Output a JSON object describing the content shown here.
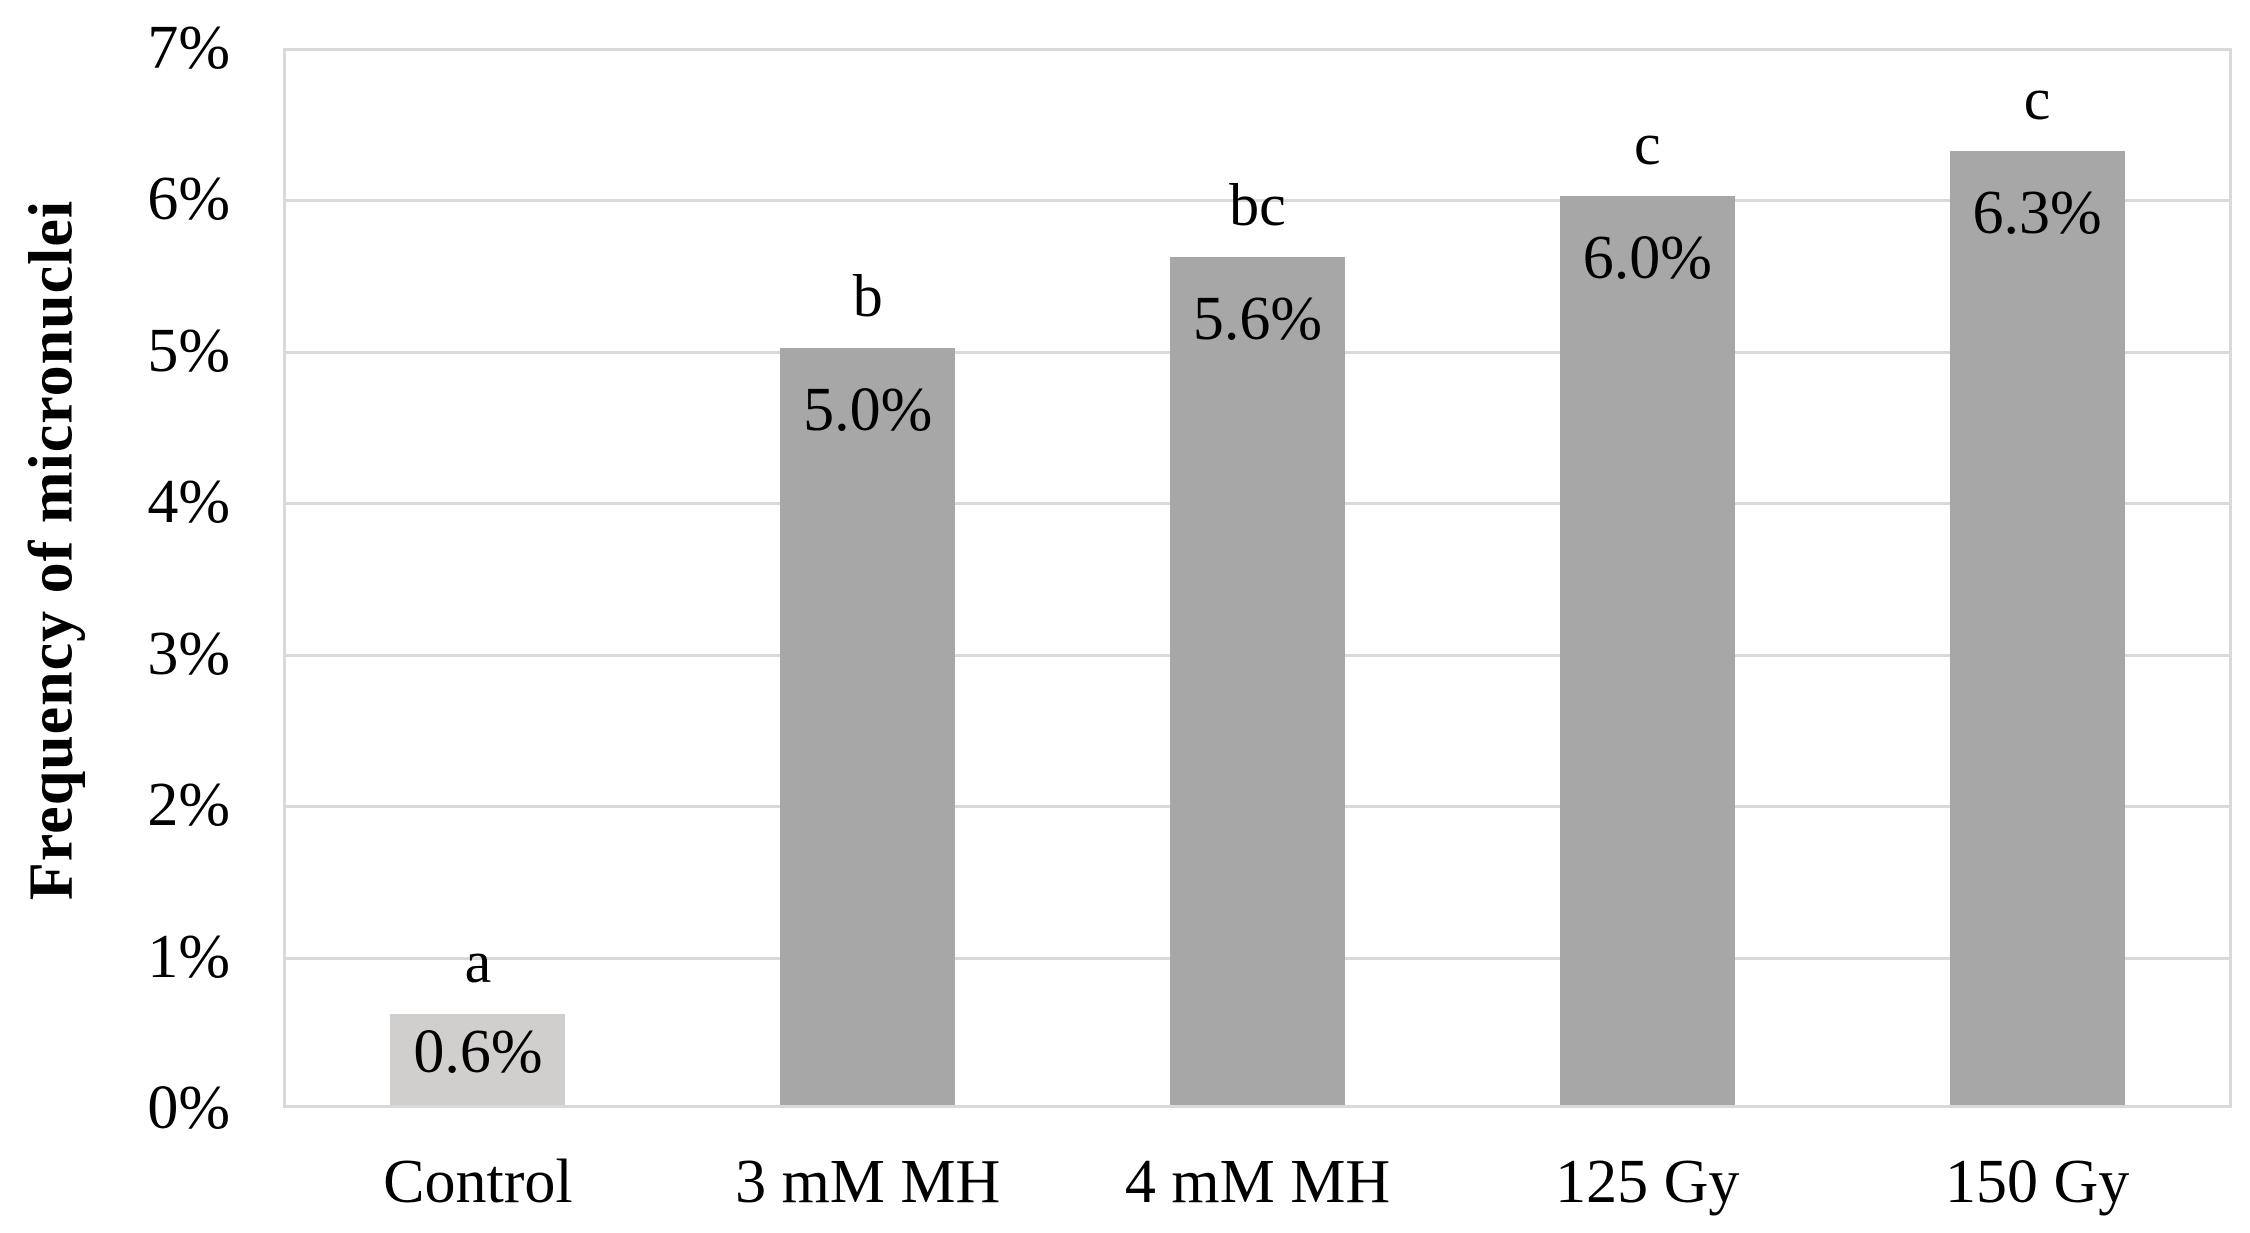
{
  "chart_data": {
    "type": "bar",
    "title": "",
    "xlabel": "",
    "ylabel": "Frequency of micronuclei",
    "categories": [
      "Control",
      "3 mM MH",
      "4 mM MH",
      "125 Gy",
      "150 Gy"
    ],
    "values": [
      0.6,
      5.0,
      5.6,
      6.0,
      6.3
    ],
    "data_labels": [
      "0.6%",
      "5.0%",
      "5.6%",
      "6.0%",
      "6.3%"
    ],
    "significance_letters": [
      "a",
      "b",
      "bc",
      "c",
      "c"
    ],
    "y_ticks": [
      "0%",
      "1%",
      "2%",
      "3%",
      "4%",
      "5%",
      "6%",
      "7%"
    ],
    "ylim": [
      0,
      7
    ],
    "grid": true,
    "legend": false,
    "bar_colors": [
      "#d1cece",
      "#a7a7a7",
      "#a7a7a7",
      "#a7a7a7",
      "#a7a7a7"
    ],
    "gridline_color": "#d9d9d9",
    "text_color": "#000000",
    "background_color": "#ffffff"
  }
}
